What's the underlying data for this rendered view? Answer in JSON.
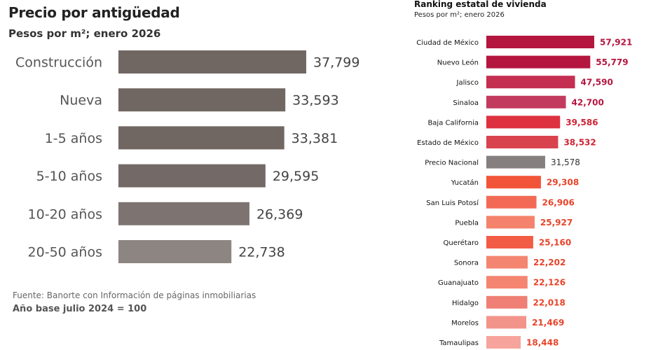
{
  "chart_data": [
    {
      "type": "bar",
      "orientation": "horizontal",
      "title": "Precio por antigüedad",
      "subtitle": "Pesos por m²; enero 2026",
      "categories": [
        "Construcción",
        "Nueva",
        "1-5 años",
        "5-10 años",
        "10-20 años",
        "20-50 años"
      ],
      "values": [
        37799,
        33593,
        33381,
        29595,
        26369,
        22738
      ],
      "value_labels": [
        "37,799",
        "33,593",
        "33,381",
        "29,595",
        "26,369",
        "22,738"
      ],
      "xlabel": "",
      "ylabel": "",
      "colors": [
        "#706763",
        "#706763",
        "#706763",
        "#736a67",
        "#7d7471",
        "#8d8582"
      ],
      "label_color": "#444444",
      "footnote": "Fuente: Banorte con Información de páginas inmobiliarias",
      "base_note": "Año base julio 2024 = 100"
    },
    {
      "type": "bar",
      "orientation": "horizontal",
      "title": "Ranking estatal de vivienda",
      "subtitle": "Pesos por m²; enero 2026",
      "categories": [
        "Ciudad de México",
        "Nuevo León",
        "Jalisco",
        "Sinaloa",
        "Baja California",
        "Estado de México",
        "Precio Nacional",
        "Yucatán",
        "San Luis Potosí",
        "Puebla",
        "Querétaro",
        "Sonora",
        "Guanajuato",
        "Hidalgo",
        "Morelos",
        "Tamaulipas"
      ],
      "values": [
        57921,
        55779,
        47590,
        42700,
        39586,
        38532,
        31578,
        29308,
        26906,
        25927,
        25160,
        22202,
        22126,
        22018,
        21469,
        18448
      ],
      "value_labels": [
        "57,921",
        "55,779",
        "47,590",
        "42,700",
        "39,586",
        "38,532",
        "31,578",
        "29,308",
        "26,906",
        "25,927",
        "25,160",
        "22,202",
        "22,126",
        "22,018",
        "21,469",
        "18,448"
      ],
      "xlabel": "",
      "ylabel": "",
      "colors": [
        "#b4163f",
        "#b4163f",
        "#c42e50",
        "#c23b5e",
        "#dd3140",
        "#d9434e",
        "#857f7f",
        "#f25438",
        "#f26a55",
        "#f4826c",
        "#f25c45",
        "#f48571",
        "#f48571",
        "#ef7f74",
        "#f3948b",
        "#f7a49d"
      ],
      "label_colors": [
        "#b4163f",
        "#b4163f",
        "#b4163f",
        "#b4163f",
        "#cf2436",
        "#cf2436",
        "#333333",
        "#e8442a",
        "#e8442a",
        "#e8442a",
        "#e8442a",
        "#e8442a",
        "#e8442a",
        "#e8442a",
        "#e8442a",
        "#e8442a"
      ]
    }
  ]
}
